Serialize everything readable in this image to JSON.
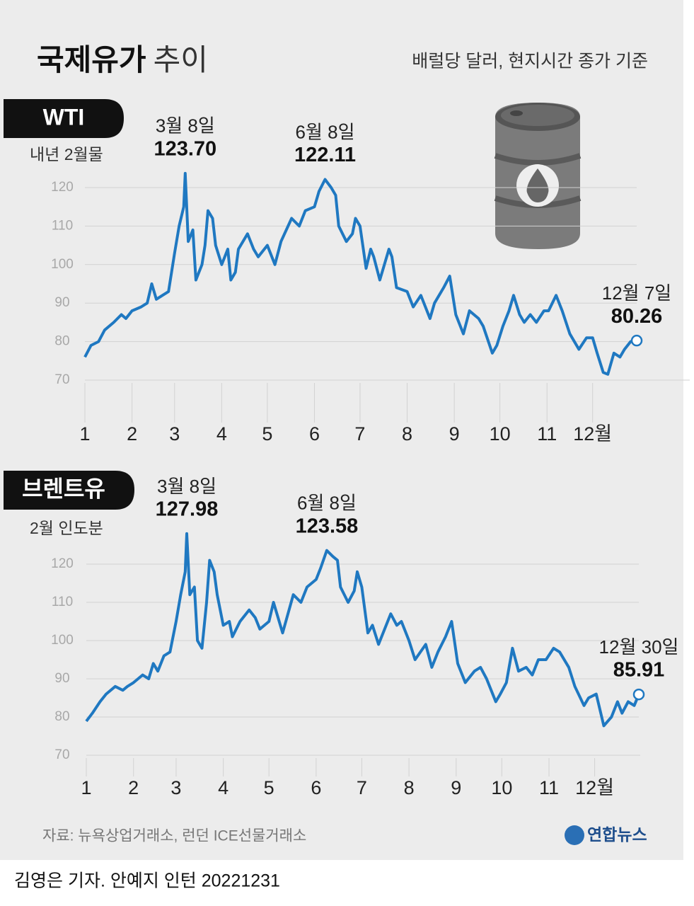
{
  "header": {
    "title_bold": "국제유가",
    "title_light": "추이",
    "subtitle": "배럴당 달러, 현지시간 종가 기준"
  },
  "chart_data": [
    {
      "type": "line",
      "subtitle": "내년 2월물",
      "series": [
        {
          "name": "WTI",
          "color": "#1f78c1",
          "x": [
            1,
            5,
            10,
            14,
            20,
            25,
            28,
            32,
            38,
            42,
            45,
            48,
            52,
            56,
            60,
            63,
            66,
            67,
            69,
            72,
            74,
            78,
            80,
            82,
            85,
            87,
            91,
            95,
            97,
            100,
            102,
            108,
            112,
            115,
            121,
            126,
            130,
            137,
            142,
            146,
            152,
            155,
            159,
            163,
            166,
            168,
            173,
            177,
            179,
            182,
            186,
            189,
            191,
            195,
            201,
            203,
            206,
            213,
            217,
            222,
            228,
            231,
            237,
            241,
            245,
            250,
            254,
            260,
            263,
            269,
            272,
            276,
            280,
            283,
            287,
            290,
            294,
            298,
            303,
            306,
            311,
            315,
            320,
            326,
            331,
            335,
            338,
            342,
            345,
            349,
            353,
            356,
            360,
            364
          ],
          "values": [
            76,
            79,
            80,
            83,
            85,
            87,
            86,
            88,
            89,
            90,
            95,
            91,
            92,
            93,
            103,
            110,
            115,
            123.7,
            106,
            109,
            96,
            100,
            105,
            114,
            112,
            105,
            100,
            104,
            96,
            98,
            104,
            108,
            104,
            102,
            105,
            100,
            106,
            112,
            110,
            114,
            115,
            119,
            122.11,
            120,
            118,
            110,
            106,
            108,
            112,
            110,
            99,
            104,
            102,
            96,
            104,
            102,
            94,
            93,
            89,
            92,
            86,
            90,
            94,
            97,
            87,
            82,
            88,
            86,
            84,
            77,
            79,
            84,
            88,
            92,
            87,
            85,
            87,
            85,
            88,
            88,
            92,
            88,
            82,
            78,
            81,
            81,
            77,
            72,
            71.5,
            77,
            76,
            78,
            80,
            80.26
          ]
        }
      ],
      "xlim": [
        1,
        364
      ],
      "xticks": [
        1,
        {
          "value": 32,
          "label": "2"
        },
        {
          "value": 60,
          "label": "3"
        },
        {
          "value": 91,
          "label": "4"
        },
        {
          "value": 121,
          "label": "5"
        },
        {
          "value": 152,
          "label": "6"
        },
        {
          "value": 182,
          "label": "7"
        },
        {
          "value": 213,
          "label": "8"
        },
        {
          "value": 244,
          "label": "9"
        },
        {
          "value": 274,
          "label": "10"
        },
        {
          "value": 305,
          "label": "11"
        },
        {
          "value": 335,
          "label": "12월"
        }
      ],
      "ylim": [
        62,
        126
      ],
      "yticks": [
        70,
        80,
        90,
        100,
        110,
        120
      ],
      "grid": true,
      "annotations": [
        {
          "date": "3월 8일",
          "x": 67,
          "value": 123.7,
          "label": "123.70"
        },
        {
          "date": "6월 8일",
          "x": 159,
          "value": 122.11,
          "label": "122.11"
        },
        {
          "date": "12월 7일",
          "x": 364,
          "value": 80.26,
          "label": "80.26"
        }
      ]
    },
    {
      "type": "line",
      "subtitle": "2월 인도분",
      "series": [
        {
          "name": "브렌트유",
          "color": "#1f78c1",
          "x": [
            1,
            5,
            10,
            14,
            20,
            25,
            28,
            32,
            38,
            42,
            45,
            48,
            52,
            56,
            60,
            63,
            66,
            67,
            69,
            72,
            74,
            77,
            80,
            82,
            85,
            87,
            91,
            95,
            97,
            102,
            108,
            112,
            115,
            121,
            124,
            130,
            137,
            142,
            146,
            152,
            155,
            159,
            163,
            166,
            168,
            173,
            177,
            179,
            182,
            186,
            189,
            193,
            201,
            205,
            208,
            213,
            217,
            224,
            228,
            232,
            237,
            241,
            245,
            250,
            256,
            260,
            264,
            270,
            273,
            277,
            281,
            285,
            290,
            294,
            298,
            303,
            308,
            312,
            318,
            322,
            328,
            331,
            336,
            341,
            346,
            350,
            353,
            357,
            361,
            364
          ],
          "values": [
            78.9,
            81,
            84,
            86,
            88,
            87,
            88,
            89,
            91,
            90,
            94,
            92,
            96,
            97,
            105,
            112,
            118,
            127.98,
            112,
            114,
            100,
            98,
            110,
            121,
            118,
            112,
            104,
            105,
            101,
            105,
            108,
            106,
            103,
            105,
            110,
            102,
            112,
            110,
            114,
            116,
            119,
            123.58,
            122,
            121,
            114,
            110,
            113,
            118,
            114,
            102,
            104,
            99,
            107,
            104,
            105,
            100,
            95,
            99,
            93,
            97,
            101,
            105,
            94,
            89,
            92,
            93,
            90,
            84,
            86,
            89,
            98,
            92,
            93,
            91,
            95,
            95,
            98,
            97,
            93,
            88,
            83,
            85,
            86,
            77.7,
            80,
            84,
            81,
            84,
            83,
            85.91
          ]
        }
      ],
      "xlim": [
        1,
        364
      ],
      "xticks": [
        1,
        {
          "value": 32,
          "label": "2"
        },
        {
          "value": 60,
          "label": "3"
        },
        {
          "value": 91,
          "label": "4"
        },
        {
          "value": 121,
          "label": "5"
        },
        {
          "value": 152,
          "label": "6"
        },
        {
          "value": 182,
          "label": "7"
        },
        {
          "value": 213,
          "label": "8"
        },
        {
          "value": 244,
          "label": "9"
        },
        {
          "value": 274,
          "label": "10"
        },
        {
          "value": 305,
          "label": "11"
        },
        {
          "value": 335,
          "label": "12월"
        }
      ],
      "ylim": [
        62,
        126
      ],
      "yticks": [
        70,
        80,
        90,
        100,
        110,
        120
      ],
      "grid": true,
      "annotations": [
        {
          "date": "3월 8일",
          "x": 67,
          "value": 127.98,
          "label": "127.98"
        },
        {
          "date": "6월 8일",
          "x": 159,
          "value": 123.58,
          "label": "123.58"
        },
        {
          "date": "12월 30일",
          "x": 364,
          "value": 85.91,
          "label": "85.91"
        }
      ]
    }
  ],
  "footer": {
    "source": "자료: 뉴욕상업거래소, 런던 ICE선물거래소",
    "logo": "연합뉴스",
    "byline": "김영은 기자. 안예지 인턴  20221231"
  }
}
